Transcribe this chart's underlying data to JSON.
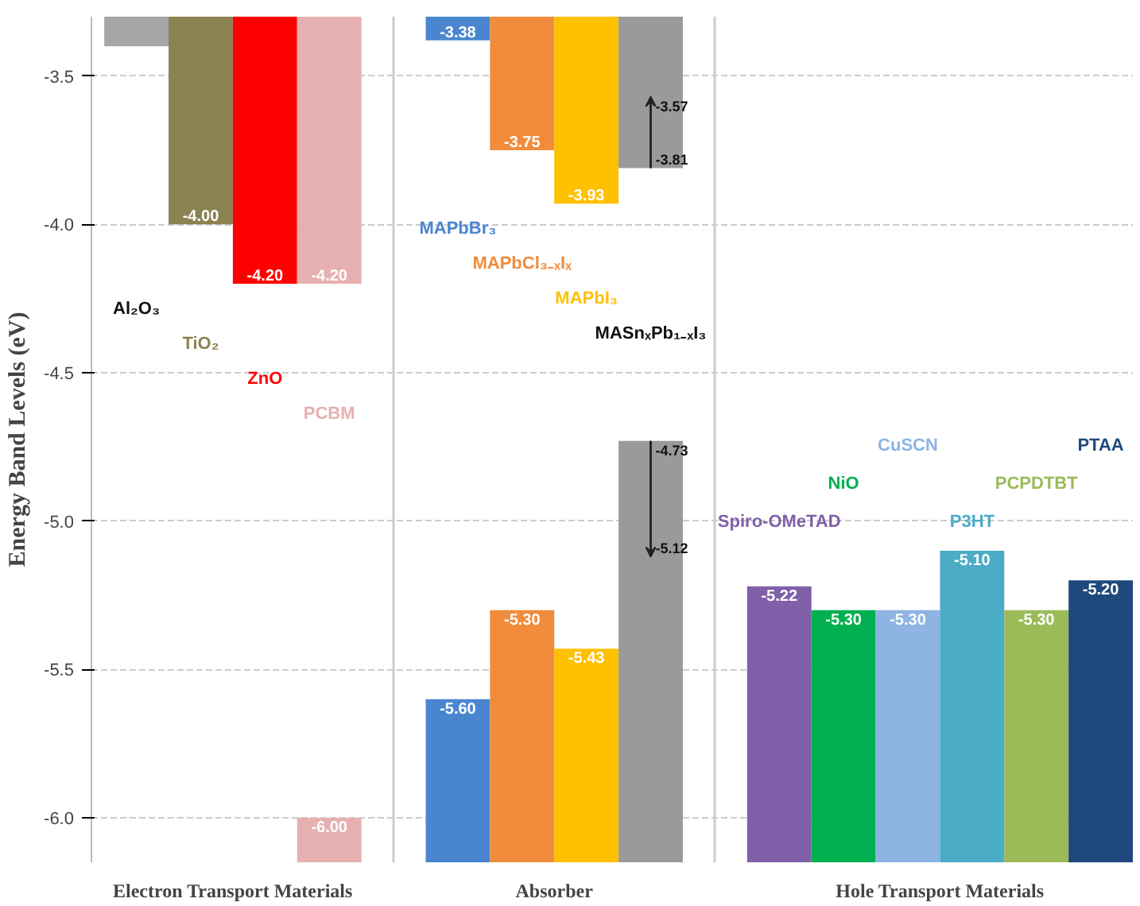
{
  "chart_data": {
    "type": "bar",
    "ylabel": "Energy Band Levels (eV)",
    "categories": [
      "Al₂O₃",
      "TiO₂",
      "ZnO",
      "PCBM",
      null,
      "MAPbBr₃",
      "MAPbCl₃₋ₓIₓ",
      "MAPbI₃",
      "MASnₓPb₁₋ₓI₃",
      null,
      "Spiro-OMeTAD",
      "NiO",
      "CuSCN",
      "P3HT",
      "PCPDTBT",
      "PTAA"
    ],
    "series": [
      {
        "base": [
          -3.3,
          -3.3,
          -3.3,
          -3.3,
          null,
          -3.3,
          -3.3,
          -3.3,
          -3.3,
          null,
          null,
          null,
          null,
          null,
          null,
          null
        ],
        "values": [
          -0.1,
          -0.7,
          -0.9,
          -0.9,
          null,
          -0.08,
          -0.45,
          -0.63,
          -0.51,
          null,
          null,
          null,
          null,
          null,
          null,
          null
        ],
        "errors": [
          null,
          null,
          null,
          null,
          null,
          null,
          null,
          null,
          [
            -3.81,
            -3.57
          ],
          null,
          null,
          null,
          null,
          null,
          null,
          null
        ],
        "colors": [
          "#a6a6a6",
          "#8c8251",
          "#ff0000",
          "#e6b0b0",
          null,
          "#4a86d0",
          "#f08c3c",
          "#ffc000",
          "#9a9a9a",
          null,
          null,
          null,
          null,
          null,
          null,
          null
        ]
      },
      {
        "base": [
          null,
          null,
          null,
          -6.15,
          null,
          -6.15,
          -6.15,
          -6.15,
          -6.15,
          null,
          -6.15,
          -6.15,
          -6.15,
          -6.15,
          -6.15,
          -6.15
        ],
        "values": [
          null,
          null,
          null,
          0.15,
          null,
          0.55,
          0.85,
          0.72,
          1.42,
          null,
          0.93,
          0.85,
          0.85,
          1.05,
          0.85,
          0.95
        ],
        "errors": [
          null,
          null,
          null,
          null,
          null,
          null,
          null,
          null,
          [
            -5.12,
            -4.73
          ],
          null,
          null,
          null,
          null,
          null,
          null,
          null
        ],
        "colors": [
          null,
          null,
          null,
          "#e6b0b0",
          null,
          "#4a86d0",
          "#f08c3c",
          "#ffc000",
          "#9a9a9a",
          null,
          "#8060a8",
          "#00b050",
          "#8db4e2",
          "#4bacc6",
          "#9bbb59",
          "#1f497d"
        ]
      }
    ],
    "annotations": [
      {
        "text": "-4.00",
        "x": "TiO₂",
        "y": -4.0
      },
      {
        "text": "-4.20",
        "x": "ZnO",
        "y": -4.2
      },
      {
        "text": "-4.20",
        "x": "PCBM",
        "y": -4.2
      },
      {
        "text": "-3.38",
        "x": "MAPbBr₃",
        "y": -3.38
      },
      {
        "text": "-3.75",
        "x": "MAPbCl₃₋ₓIₓ",
        "y": -3.75
      },
      {
        "text": "-3.93",
        "x": "MAPbI₃",
        "y": -3.93
      },
      {
        "text": "-3.81",
        "x": "MASnₓPb₁₋ₓI₃",
        "y": -3.81
      },
      {
        "text": "-3.57",
        "x": "MASnₓPb₁₋ₓI₃",
        "y": -3.57
      },
      {
        "text": "-6.00",
        "x": "PCBM",
        "y": -6.0
      },
      {
        "text": "-5.60",
        "x": "MAPbBr₃",
        "y": -5.6
      },
      {
        "text": "-5.30",
        "x": "MAPbCl₃₋ₓIₓ",
        "y": -5.3
      },
      {
        "text": "-5.43",
        "x": "MAPbI₃",
        "y": -5.43
      },
      {
        "text": "-4.73",
        "x": "MASnₓPb₁₋ₓI₃",
        "y": -4.73
      },
      {
        "text": "-5.12",
        "x": "MASnₓPb₁₋ₓI₃",
        "y": -5.12
      },
      {
        "text": "-5.22",
        "x": "Spiro-OMeTAD",
        "y": -5.22
      },
      {
        "text": "-5.30",
        "x": "NiO",
        "y": -5.3
      },
      {
        "text": "-5.30",
        "x": "CuSCN",
        "y": -5.3
      },
      {
        "text": "-5.10",
        "x": "P3HT",
        "y": -5.1
      },
      {
        "text": "-5.30",
        "x": "PCPDTBT",
        "y": -5.3
      },
      {
        "text": "-5.20",
        "x": "PTAA",
        "y": -5.2
      },
      "Electron Transport Materials",
      "Absorber",
      "Hole Transport Materials"
    ],
    "ylim": [
      -6.15,
      -3.3
    ],
    "yticks": [
      {
        "value": -3.5,
        "label": "-3.5"
      },
      {
        "value": -4.0,
        "label": "-4.0"
      },
      {
        "value": -4.5,
        "label": "-4.5"
      },
      {
        "value": -5.0,
        "label": "-5.0"
      },
      {
        "value": -5.5,
        "label": "-5.5"
      },
      {
        "value": -6.0,
        "label": "-6.0"
      }
    ],
    "grid": true
  }
}
